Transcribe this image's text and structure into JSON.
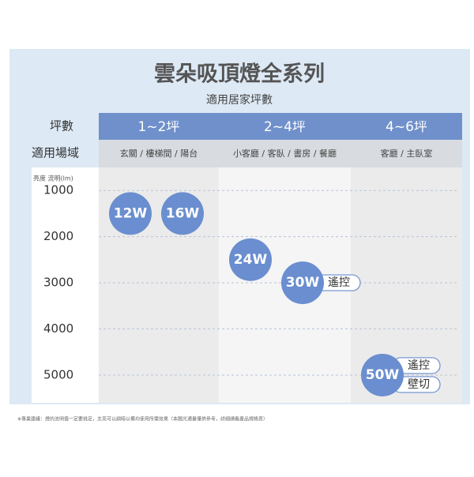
{
  "chart_data": {
    "type": "scatter",
    "title": "雲朵吸頂燈全系列",
    "subtitle": "適用居家坪數",
    "row_labels": [
      "坪數",
      "適用場域"
    ],
    "categories": [
      "1~2坪",
      "2~4坪",
      "4~6坪"
    ],
    "areas": [
      "玄關 / 樓梯間 / 陽台",
      "小客廳 / 客臥 / 書房 / 餐廳",
      "客廳 / 主臥室"
    ],
    "y_label": "亮度 流明(lm)",
    "ylim": [
      500,
      5600
    ],
    "yticks": [
      1000,
      2000,
      3000,
      4000,
      5000
    ],
    "inverted": true,
    "grid": true,
    "color": "#6a8ecf",
    "points": [
      {
        "label": "12W",
        "category": 0,
        "y": 1500,
        "tags": []
      },
      {
        "label": "16W",
        "category": 0,
        "y": 1500,
        "tags": []
      },
      {
        "label": "24W",
        "category": 1,
        "y": 2500,
        "tags": []
      },
      {
        "label": "30W",
        "category": 1,
        "y": 3000,
        "tags": [
          "遙控"
        ]
      },
      {
        "label": "50W",
        "category": 2,
        "y": 5000,
        "tags": [
          "遙控",
          "壁切"
        ]
      }
    ],
    "footnote": "※專業建議：燈的流明值一定要挑足，太亮可以調暗以備均使用所需效果（本圖光通量僅供參考，詳細請看產品規格表）"
  }
}
